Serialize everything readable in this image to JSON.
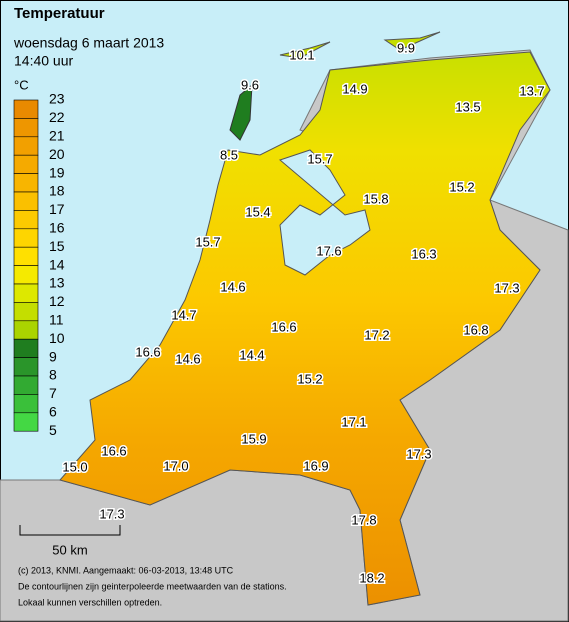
{
  "header": {
    "title": "Temperatuur",
    "subtitle": "woensdag 6 maart 2013",
    "time": "14:40 uur"
  },
  "legend": {
    "unit": "°C",
    "labels": [
      "23",
      "22",
      "21",
      "20",
      "19",
      "18",
      "17",
      "16",
      "15",
      "14",
      "13",
      "12",
      "11",
      "10",
      "9",
      "8",
      "7",
      "6",
      "5"
    ],
    "colors": [
      "#e98a00",
      "#ee9600",
      "#f2a000",
      "#f5aa00",
      "#f8b500",
      "#fac000",
      "#fcca00",
      "#fed500",
      "#ffe000",
      "#f5ea00",
      "#dde800",
      "#c4de00",
      "#aad400",
      "#1f7d1f",
      "#2a952a",
      "#32aa32",
      "#3ac03a",
      "#44d844"
    ]
  },
  "stations": [
    "10.1",
    "9.9",
    "9.6",
    "14.9",
    "13.5",
    "13.7",
    "8.5",
    "15.7",
    "15.2",
    "15.8",
    "15.4",
    "15.7",
    "17.6",
    "16.3",
    "14.6",
    "17.3",
    "14.7",
    "16.6",
    "17.2",
    "16.8",
    "16.6",
    "14.6",
    "14.4",
    "15.2",
    "17.1",
    "15.9",
    "16.6",
    "17.3",
    "15.0",
    "17.0",
    "16.9",
    "17.3",
    "17.8",
    "18.2"
  ],
  "scale": "50 km",
  "footer": [
    "(c) 2013, KNMI. Aangemaakt: 06-03-2013, 13:48 UTC",
    "De contourlijnen zijn geinterpoleerde meetwaarden van de stations.",
    "Lokaal kunnen verschillen optreden."
  ]
}
